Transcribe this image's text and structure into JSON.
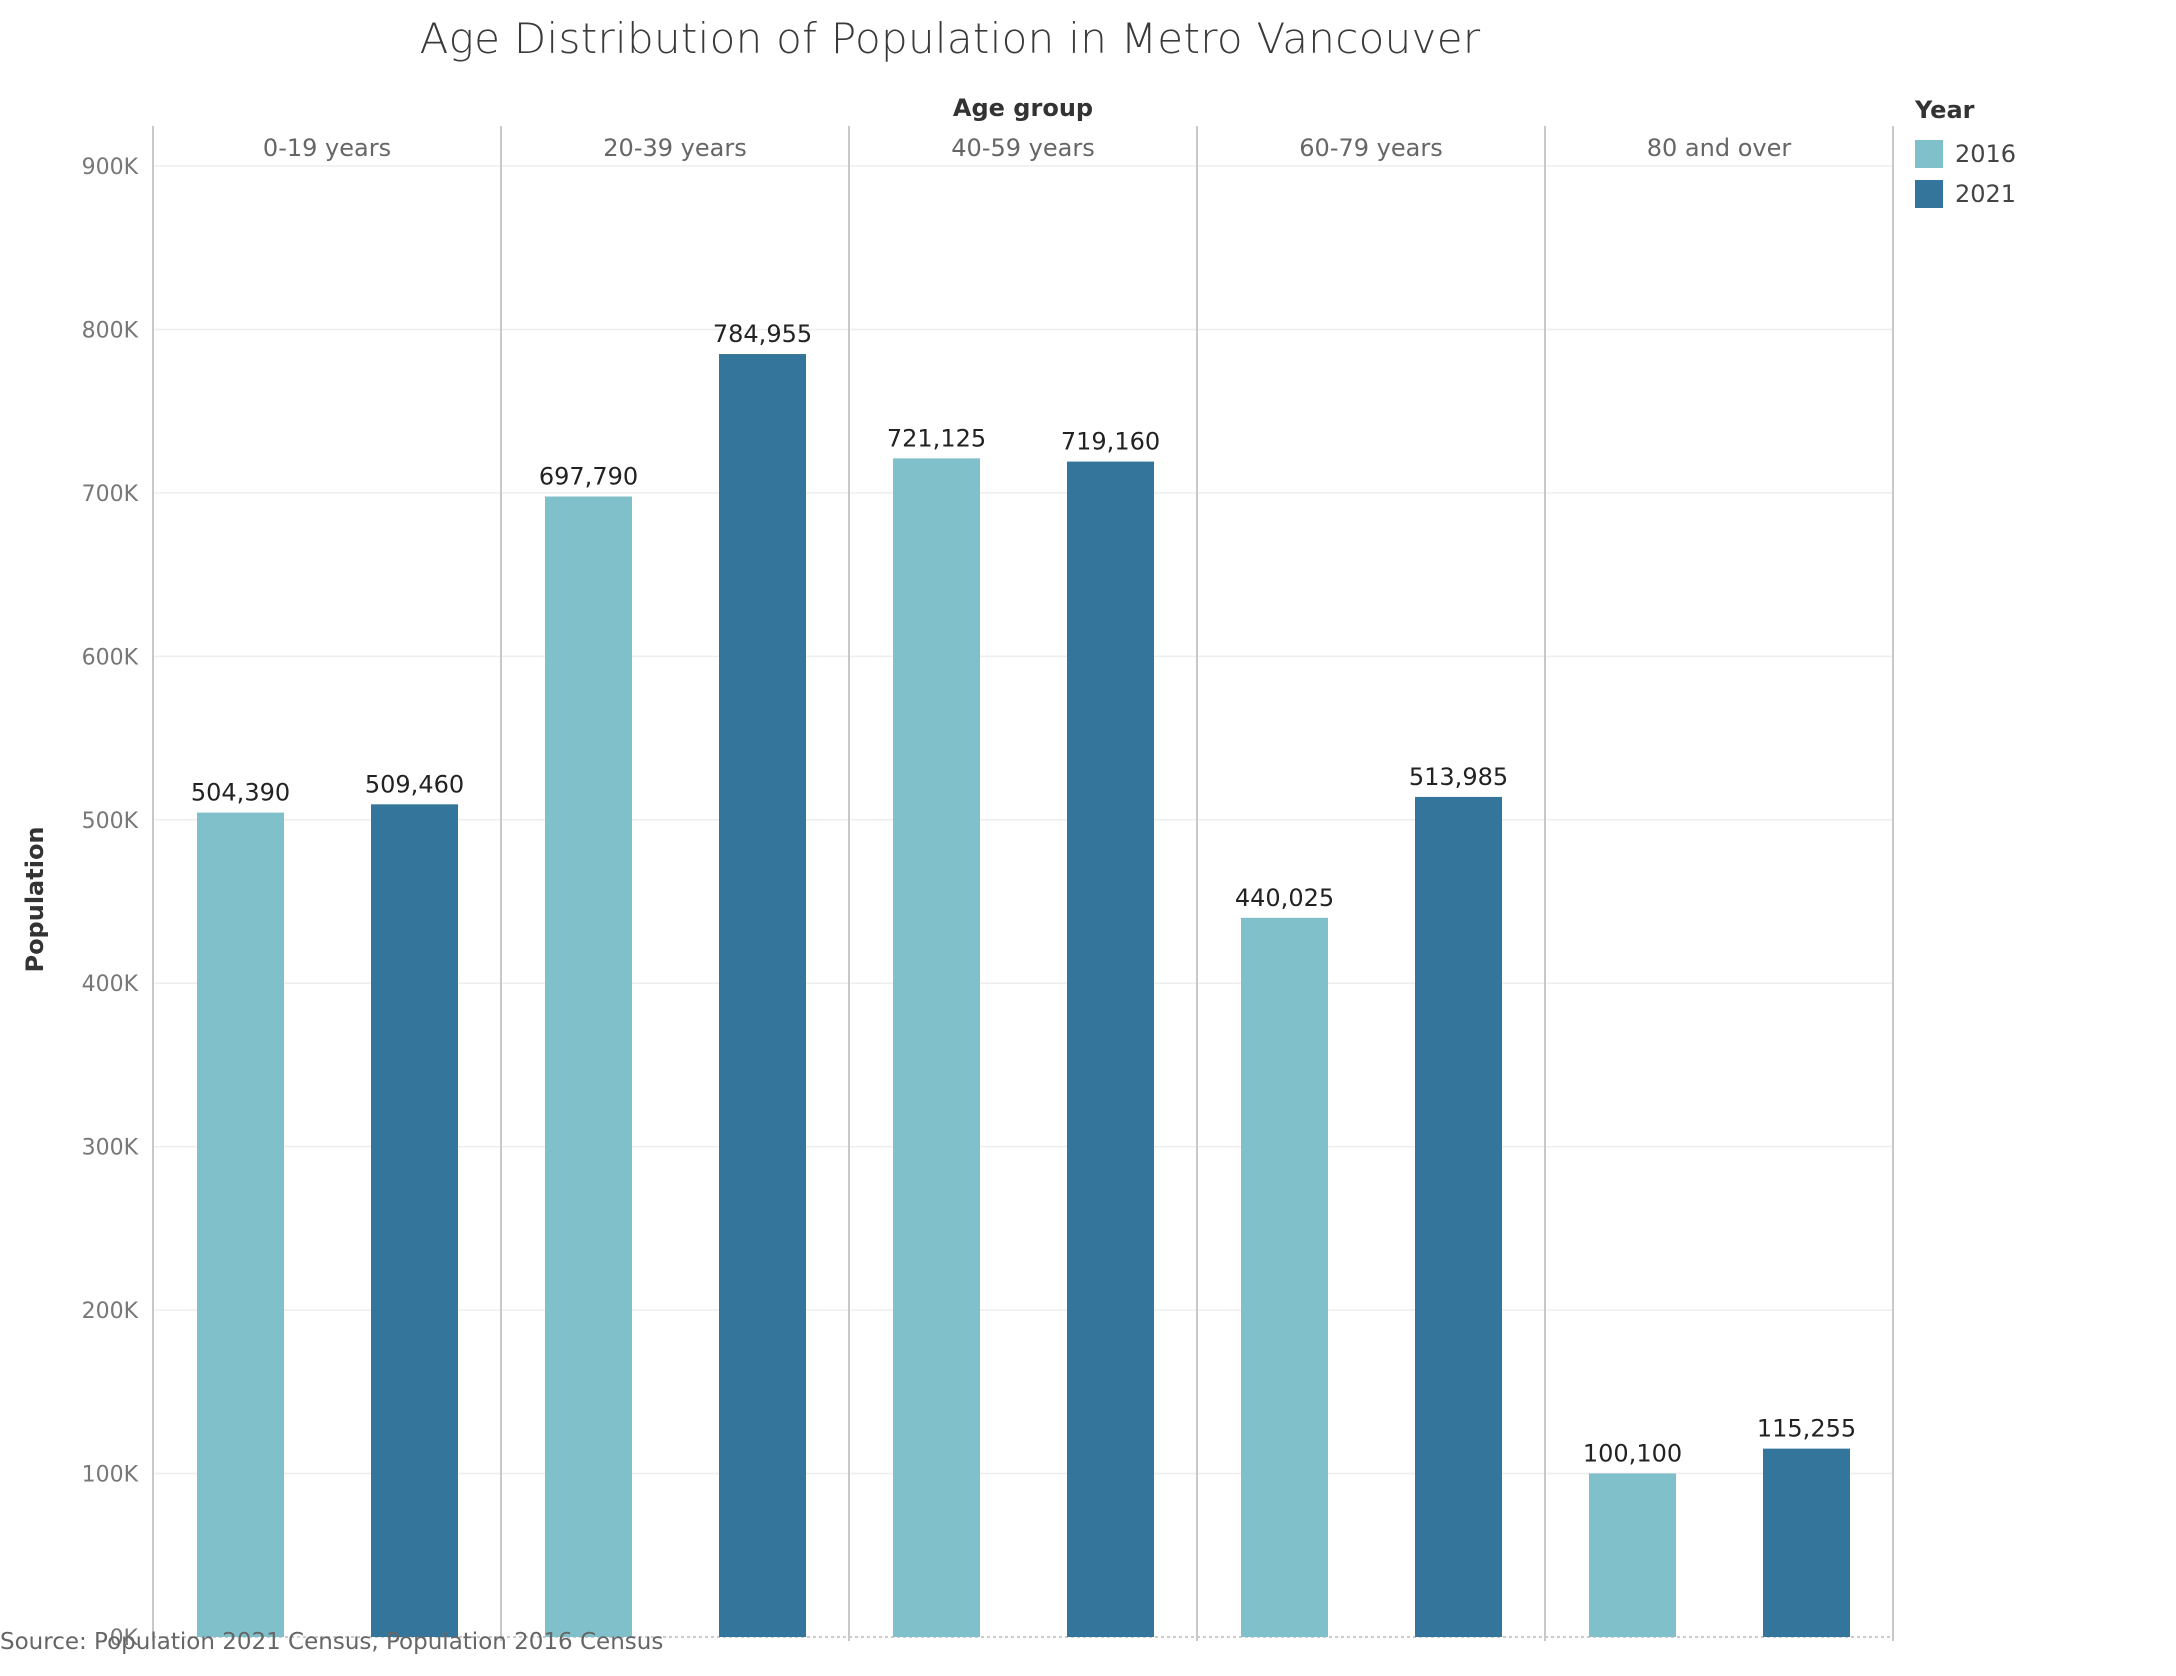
{
  "chart_data": {
    "type": "bar",
    "title": "Age Distribution of Population in Metro Vancouver",
    "column_header": "Age group",
    "xlabel": "",
    "ylabel": "Population",
    "ylim": [
      0,
      900000
    ],
    "y_ticks": [
      "0K",
      "100K",
      "200K",
      "300K",
      "400K",
      "500K",
      "600K",
      "700K",
      "800K",
      "900K"
    ],
    "y_tick_values": [
      0,
      100000,
      200000,
      300000,
      400000,
      500000,
      600000,
      700000,
      800000,
      900000
    ],
    "categories": [
      "0-19 years",
      "20-39 years",
      "40-59 years",
      "60-79 years",
      "80 and over"
    ],
    "series": [
      {
        "name": "2016",
        "color": "#80C0CA",
        "values": [
          504390,
          697790,
          721125,
          440025,
          100100
        ],
        "labels": [
          "504,390",
          "697,790",
          "721,125",
          "440,025",
          "100,100"
        ]
      },
      {
        "name": "2021",
        "color": "#33759B",
        "values": [
          509460,
          784955,
          719160,
          513985,
          115255
        ],
        "labels": [
          "509,460",
          "784,955",
          "719,160",
          "513,985",
          "115,255"
        ]
      }
    ],
    "grid": true,
    "legend": {
      "title": "Year",
      "position": "top-right"
    },
    "source": "Source: Population 2021 Census, Population 2016 Census"
  }
}
